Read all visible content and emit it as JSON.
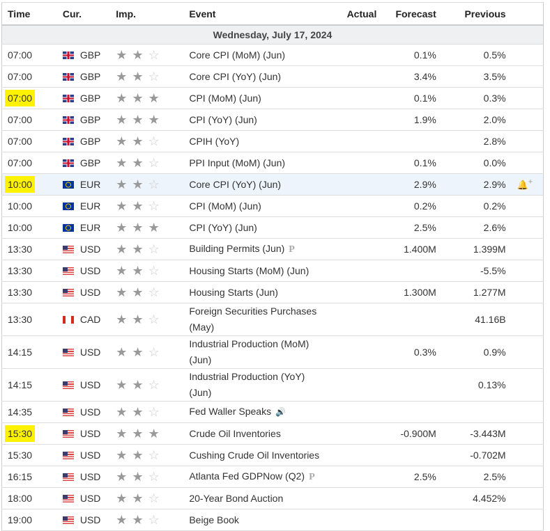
{
  "headers": {
    "time": "Time",
    "cur": "Cur.",
    "imp": "Imp.",
    "event": "Event",
    "actual": "Actual",
    "forecast": "Forecast",
    "previous": "Previous"
  },
  "date": "Wednesday, July 17, 2024",
  "rows": [
    {
      "time": "07:00",
      "cur": "GBP",
      "flag": "gb",
      "imp": 2,
      "event": "Core CPI (MoM) (Jun)",
      "actual": "",
      "forecast": "0.1%",
      "previous": "0.5%"
    },
    {
      "time": "07:00",
      "cur": "GBP",
      "flag": "gb",
      "imp": 2,
      "event": "Core CPI (YoY) (Jun)",
      "actual": "",
      "forecast": "3.4%",
      "previous": "3.5%"
    },
    {
      "time": "07:00",
      "cur": "GBP",
      "flag": "gb",
      "imp": 3,
      "event": "CPI (MoM) (Jun)",
      "actual": "",
      "forecast": "0.1%",
      "previous": "0.3%",
      "highlight": true
    },
    {
      "time": "07:00",
      "cur": "GBP",
      "flag": "gb",
      "imp": 3,
      "event": "CPI (YoY) (Jun)",
      "actual": "",
      "forecast": "1.9%",
      "previous": "2.0%"
    },
    {
      "time": "07:00",
      "cur": "GBP",
      "flag": "gb",
      "imp": 2,
      "event": "CPIH (YoY)",
      "actual": "",
      "forecast": "",
      "previous": "2.8%"
    },
    {
      "time": "07:00",
      "cur": "GBP",
      "flag": "gb",
      "imp": 2,
      "event": "PPI Input (MoM) (Jun)",
      "actual": "",
      "forecast": "0.1%",
      "previous": "0.0%"
    },
    {
      "time": "10:00",
      "cur": "EUR",
      "flag": "eu",
      "imp": 2,
      "event": "Core CPI (YoY) (Jun)",
      "actual": "",
      "forecast": "2.9%",
      "previous": "2.9%",
      "highlight": true,
      "selected": true,
      "icon": "bell-plus-icon"
    },
    {
      "time": "10:00",
      "cur": "EUR",
      "flag": "eu",
      "imp": 2,
      "event": "CPI (MoM) (Jun)",
      "actual": "",
      "forecast": "0.2%",
      "previous": "0.2%"
    },
    {
      "time": "10:00",
      "cur": "EUR",
      "flag": "eu",
      "imp": 3,
      "event": "CPI (YoY) (Jun)",
      "actual": "",
      "forecast": "2.5%",
      "previous": "2.6%"
    },
    {
      "time": "13:30",
      "cur": "USD",
      "flag": "us",
      "imp": 2,
      "event": "Building Permits (Jun)",
      "actual": "",
      "forecast": "1.400M",
      "previous": "1.399M",
      "badge": "P"
    },
    {
      "time": "13:30",
      "cur": "USD",
      "flag": "us",
      "imp": 2,
      "event": "Housing Starts (MoM) (Jun)",
      "actual": "",
      "forecast": "",
      "previous": "-5.5%"
    },
    {
      "time": "13:30",
      "cur": "USD",
      "flag": "us",
      "imp": 2,
      "event": "Housing Starts (Jun)",
      "actual": "",
      "forecast": "1.300M",
      "previous": "1.277M"
    },
    {
      "time": "13:30",
      "cur": "CAD",
      "flag": "ca",
      "imp": 2,
      "event": "Foreign Securities Purchases (May)",
      "actual": "",
      "forecast": "",
      "previous": "41.16B"
    },
    {
      "time": "14:15",
      "cur": "USD",
      "flag": "us",
      "imp": 2,
      "event": "Industrial Production (MoM) (Jun)",
      "actual": "",
      "forecast": "0.3%",
      "previous": "0.9%"
    },
    {
      "time": "14:15",
      "cur": "USD",
      "flag": "us",
      "imp": 2,
      "event": "Industrial Production (YoY) (Jun)",
      "actual": "",
      "forecast": "",
      "previous": "0.13%"
    },
    {
      "time": "14:35",
      "cur": "USD",
      "flag": "us",
      "imp": 2,
      "event": "Fed Waller Speaks",
      "actual": "",
      "forecast": "",
      "previous": "",
      "speech": true
    },
    {
      "time": "15:30",
      "cur": "USD",
      "flag": "us",
      "imp": 3,
      "event": "Crude Oil Inventories",
      "actual": "",
      "forecast": "-0.900M",
      "previous": "-3.443M",
      "highlight": true
    },
    {
      "time": "15:30",
      "cur": "USD",
      "flag": "us",
      "imp": 2,
      "event": "Cushing Crude Oil Inventories",
      "actual": "",
      "forecast": "",
      "previous": "-0.702M"
    },
    {
      "time": "16:15",
      "cur": "USD",
      "flag": "us",
      "imp": 2,
      "event": "Atlanta Fed GDPNow (Q2)",
      "actual": "",
      "forecast": "2.5%",
      "previous": "2.5%",
      "badge": "P"
    },
    {
      "time": "18:00",
      "cur": "USD",
      "flag": "us",
      "imp": 2,
      "event": "20-Year Bond Auction",
      "actual": "",
      "forecast": "",
      "previous": "4.452%"
    },
    {
      "time": "19:00",
      "cur": "USD",
      "flag": "us",
      "imp": 2,
      "event": "Beige Book",
      "actual": "",
      "forecast": "",
      "previous": ""
    }
  ]
}
